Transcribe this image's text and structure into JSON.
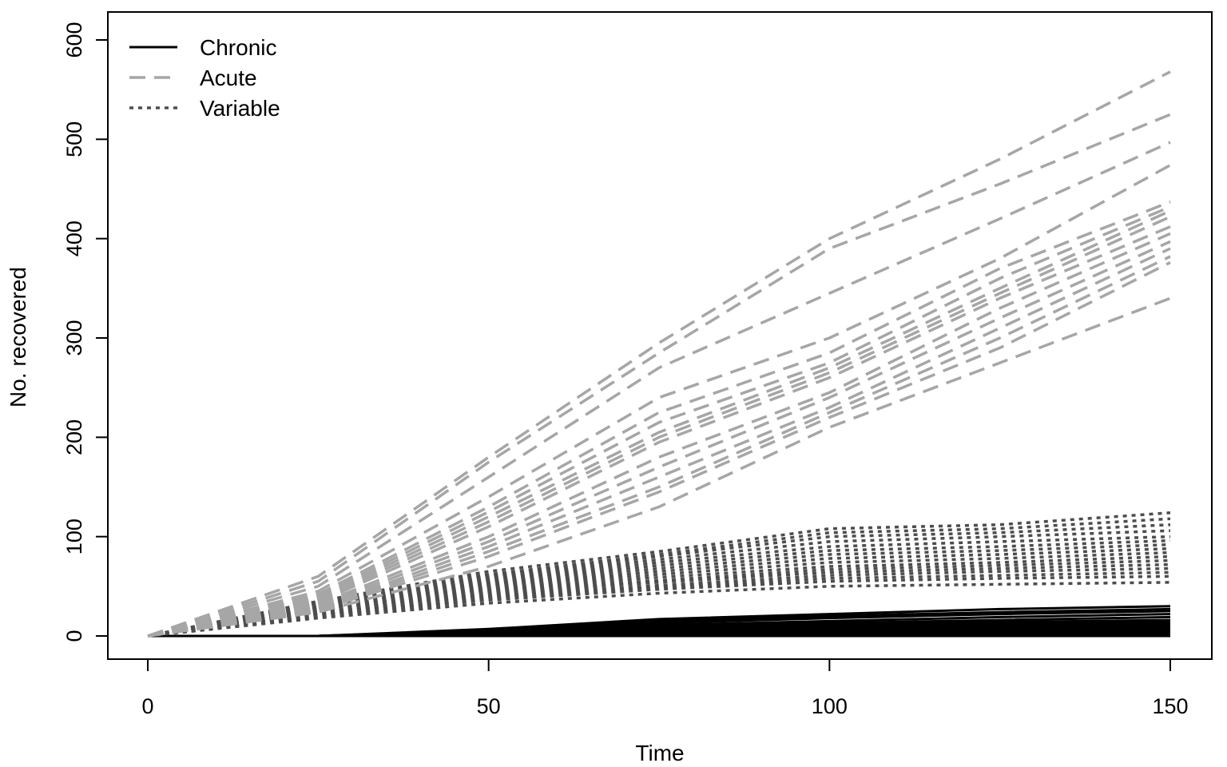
{
  "chart_data": {
    "type": "line",
    "title": "",
    "xlabel": "Time",
    "ylabel": "No. recovered",
    "xlim": [
      0,
      150
    ],
    "ylim": [
      0,
      600
    ],
    "xticks": [
      0,
      50,
      100,
      150
    ],
    "yticks": [
      0,
      100,
      200,
      300,
      400,
      500,
      600
    ],
    "grid": false,
    "legend": {
      "position": "top-left",
      "entries": [
        {
          "label": "Chronic",
          "style": "solid",
          "color": "#000000"
        },
        {
          "label": "Acute",
          "style": "dashed",
          "color": "#a6a6a6"
        },
        {
          "label": "Variable",
          "style": "dotted",
          "color": "#4d4d4d"
        }
      ]
    },
    "x": [
      0,
      25,
      50,
      75,
      100,
      125,
      150
    ],
    "series": [
      {
        "group": "Acute",
        "values": [
          0,
          60,
          180,
          295,
          400,
          480,
          568
        ]
      },
      {
        "group": "Acute",
        "values": [
          0,
          55,
          175,
          285,
          390,
          455,
          525
        ]
      },
      {
        "group": "Acute",
        "values": [
          0,
          50,
          160,
          270,
          345,
          420,
          497
        ]
      },
      {
        "group": "Acute",
        "values": [
          0,
          45,
          140,
          240,
          300,
          380,
          474
        ]
      },
      {
        "group": "Acute",
        "values": [
          0,
          42,
          130,
          225,
          285,
          370,
          437
        ]
      },
      {
        "group": "Acute",
        "values": [
          0,
          40,
          125,
          215,
          275,
          360,
          432
        ]
      },
      {
        "group": "Acute",
        "values": [
          0,
          38,
          120,
          205,
          270,
          350,
          428
        ]
      },
      {
        "group": "Acute",
        "values": [
          0,
          36,
          115,
          200,
          265,
          345,
          422
        ]
      },
      {
        "group": "Acute",
        "values": [
          0,
          34,
          110,
          195,
          260,
          340,
          412
        ]
      },
      {
        "group": "Acute",
        "values": [
          0,
          32,
          100,
          180,
          245,
          330,
          405
        ]
      },
      {
        "group": "Acute",
        "values": [
          0,
          30,
          95,
          170,
          240,
          320,
          397
        ]
      },
      {
        "group": "Acute",
        "values": [
          0,
          28,
          90,
          160,
          230,
          310,
          390
        ]
      },
      {
        "group": "Acute",
        "values": [
          0,
          27,
          85,
          150,
          225,
          300,
          382
        ]
      },
      {
        "group": "Acute",
        "values": [
          0,
          26,
          80,
          145,
          220,
          290,
          376
        ]
      },
      {
        "group": "Acute",
        "values": [
          0,
          24,
          70,
          130,
          210,
          275,
          340
        ]
      },
      {
        "group": "Variable",
        "values": [
          0,
          35,
          65,
          85,
          108,
          112,
          124
        ]
      },
      {
        "group": "Variable",
        "values": [
          0,
          34,
          62,
          82,
          104,
          108,
          118
        ]
      },
      {
        "group": "Variable",
        "values": [
          0,
          32,
          60,
          80,
          100,
          104,
          112
        ]
      },
      {
        "group": "Variable",
        "values": [
          0,
          31,
          58,
          77,
          95,
          100,
          106
        ]
      },
      {
        "group": "Variable",
        "values": [
          0,
          30,
          56,
          74,
          90,
          95,
          100
        ]
      },
      {
        "group": "Variable",
        "values": [
          0,
          29,
          54,
          71,
          86,
          90,
          96
        ]
      },
      {
        "group": "Variable",
        "values": [
          0,
          28,
          52,
          68,
          82,
          86,
          92
        ]
      },
      {
        "group": "Variable",
        "values": [
          0,
          27,
          50,
          65,
          78,
          82,
          88
        ]
      },
      {
        "group": "Variable",
        "values": [
          0,
          26,
          48,
          62,
          74,
          78,
          84
        ]
      },
      {
        "group": "Variable",
        "values": [
          0,
          25,
          46,
          59,
          70,
          74,
          80
        ]
      },
      {
        "group": "Variable",
        "values": [
          0,
          24,
          44,
          56,
          67,
          71,
          76
        ]
      },
      {
        "group": "Variable",
        "values": [
          0,
          23,
          42,
          54,
          64,
          68,
          72
        ]
      },
      {
        "group": "Variable",
        "values": [
          0,
          22,
          40,
          51,
          61,
          65,
          68
        ]
      },
      {
        "group": "Variable",
        "values": [
          0,
          21,
          38,
          49,
          58,
          61,
          64
        ]
      },
      {
        "group": "Variable",
        "values": [
          0,
          20,
          36,
          47,
          55,
          58,
          60
        ]
      },
      {
        "group": "Variable",
        "values": [
          0,
          18,
          33,
          43,
          50,
          52,
          54
        ]
      },
      {
        "group": "Chronic",
        "values": [
          0,
          0,
          7,
          17,
          22,
          27,
          30
        ]
      },
      {
        "group": "Chronic",
        "values": [
          0,
          0,
          6,
          15,
          20,
          24,
          27
        ]
      },
      {
        "group": "Chronic",
        "values": [
          0,
          0,
          5,
          13,
          18,
          22,
          25
        ]
      },
      {
        "group": "Chronic",
        "values": [
          0,
          0,
          4,
          11,
          15,
          19,
          22
        ]
      },
      {
        "group": "Chronic",
        "values": [
          0,
          0,
          3,
          9,
          13,
          16,
          19
        ]
      },
      {
        "group": "Chronic",
        "values": [
          0,
          0,
          3,
          8,
          11,
          14,
          16
        ]
      },
      {
        "group": "Chronic",
        "values": [
          0,
          0,
          2,
          6,
          9,
          12,
          14
        ]
      },
      {
        "group": "Chronic",
        "values": [
          0,
          0,
          2,
          5,
          7,
          10,
          12
        ]
      },
      {
        "group": "Chronic",
        "values": [
          0,
          0,
          1,
          4,
          6,
          8,
          10
        ]
      },
      {
        "group": "Chronic",
        "values": [
          0,
          0,
          1,
          3,
          4,
          6,
          8
        ]
      },
      {
        "group": "Chronic",
        "values": [
          0,
          0,
          0,
          2,
          3,
          4,
          6
        ]
      },
      {
        "group": "Chronic",
        "values": [
          0,
          0,
          0,
          1,
          2,
          3,
          4
        ]
      },
      {
        "group": "Chronic",
        "values": [
          0,
          0,
          0,
          0,
          1,
          1,
          2
        ]
      },
      {
        "group": "Chronic",
        "values": [
          0,
          0,
          0,
          0,
          0,
          0,
          0
        ]
      }
    ]
  }
}
